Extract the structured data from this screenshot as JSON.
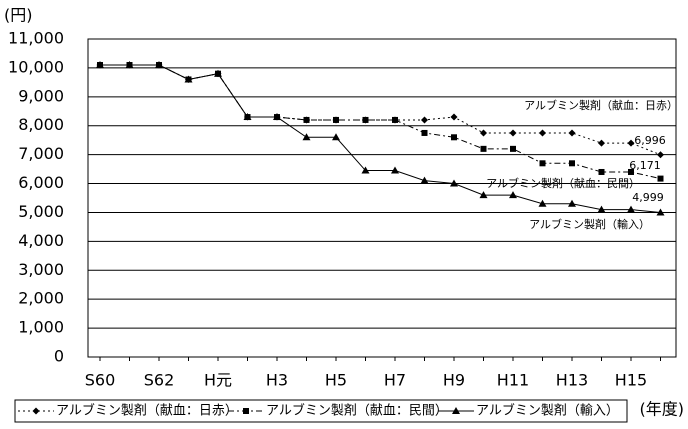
{
  "chart_data": {
    "type": "line",
    "y_label": "(円)",
    "x_label": "(年度)",
    "categories": [
      "S60",
      null,
      "S62",
      null,
      "H元",
      null,
      "H3",
      null,
      "H5",
      null,
      "H7",
      null,
      "H9",
      null,
      "H11",
      null,
      "H13",
      null,
      "H15",
      null
    ],
    "ylim": [
      0,
      11000
    ],
    "yticks": [
      0,
      {
        "value": 1000,
        "label": "1,000"
      },
      {
        "value": 2000,
        "label": "2,000"
      },
      {
        "value": 3000,
        "label": "3,000"
      },
      {
        "value": 4000,
        "label": "4,000"
      },
      {
        "value": 5000,
        "label": "5,000"
      },
      {
        "value": 6000,
        "label": "6,000"
      },
      {
        "value": 7000,
        "label": "7,000"
      },
      {
        "value": 8000,
        "label": "8,000"
      },
      {
        "value": 9000,
        "label": "9,000"
      },
      {
        "value": 10000,
        "label": "10,000"
      },
      {
        "value": 11000,
        "label": "11,000"
      }
    ],
    "grid": true,
    "legend": "bottom",
    "series": [
      {
        "name": "アルブミン製剤（献血：日赤）",
        "color": "#000000",
        "marker": "diamond",
        "dash": "dot",
        "values": [
          10100,
          10100,
          10100,
          9600,
          9800,
          8300,
          8300,
          8200,
          8200,
          8200,
          8200,
          8200,
          8300,
          7750,
          7750,
          7750,
          7750,
          7400,
          7400,
          6996
        ],
        "value_labels": [
          null,
          null,
          null,
          null,
          null,
          null,
          null,
          null,
          null,
          null,
          null,
          null,
          null,
          null,
          null,
          null,
          null,
          null,
          null,
          "6,996"
        ]
      },
      {
        "name": "アルブミン製剤（献血：民間）",
        "color": "#000000",
        "marker": "square",
        "dash": "dashdot",
        "values": [
          10100,
          10100,
          10100,
          9600,
          9800,
          8300,
          8300,
          8200,
          8200,
          8200,
          8200,
          7750,
          7600,
          7200,
          7200,
          6700,
          6700,
          6400,
          6400,
          6171
        ],
        "value_labels": [
          null,
          null,
          null,
          null,
          null,
          null,
          null,
          null,
          null,
          null,
          null,
          null,
          null,
          null,
          null,
          null,
          null,
          null,
          null,
          "6,171"
        ]
      },
      {
        "name": "アルブミン製剤（輸入）",
        "color": "#000000",
        "marker": "triangle",
        "dash": "solid",
        "values": [
          10100,
          10100,
          10100,
          9600,
          9800,
          8300,
          8300,
          7600,
          7600,
          6450,
          6450,
          6100,
          6000,
          5600,
          5600,
          5300,
          5300,
          5100,
          5100,
          4999
        ],
        "value_labels": [
          null,
          null,
          null,
          null,
          null,
          null,
          null,
          null,
          null,
          null,
          null,
          null,
          null,
          null,
          null,
          null,
          null,
          null,
          null,
          "4,999"
        ]
      }
    ],
    "annotations": [
      "アルブミン製剤（献血：日赤）",
      "アルブミン製剤（献血：民間）",
      "アルブミン製剤（輸入）"
    ]
  }
}
